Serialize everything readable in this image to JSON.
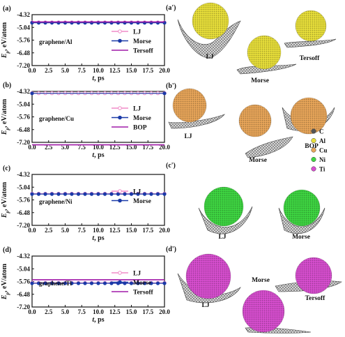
{
  "chart_data": [
    {
      "type": "line",
      "panel_label": "(a)",
      "system": "graphene/Al",
      "xlabel": "t, ps",
      "ylabel": "Ep, eV/atom",
      "xlim": [
        0,
        20
      ],
      "ylim": [
        -7.2,
        -4.32
      ],
      "yticks": [
        "-4.32",
        "-5.04",
        "-5.76",
        "-6.48",
        "-7.20"
      ],
      "xticks": [
        "0.0",
        "2.5",
        "5.0",
        "7.5",
        "10.0",
        "12.5",
        "15.0",
        "17.5",
        "20.0"
      ],
      "legend_position": "right",
      "series": [
        {
          "name": "LJ",
          "color": "#f08cc8",
          "marker": "circle-open",
          "x": [
            0,
            1,
            2,
            3,
            4,
            5,
            6,
            7,
            8,
            9,
            10,
            11,
            12,
            13,
            14,
            15,
            16,
            17,
            18,
            19,
            20
          ],
          "values": [
            -4.76,
            -4.76,
            -4.76,
            -4.76,
            -4.76,
            -4.76,
            -4.76,
            -4.76,
            -4.76,
            -4.76,
            -4.76,
            -4.76,
            -4.76,
            -4.76,
            -4.76,
            -4.76,
            -4.76,
            -4.76,
            -4.76,
            -4.76,
            -4.76
          ]
        },
        {
          "name": "Morse",
          "color": "#1a3aa8",
          "marker": "circle-filled",
          "x": [
            0,
            1,
            2,
            3,
            4,
            5,
            6,
            7,
            8,
            9,
            10,
            11,
            12,
            13,
            14,
            15,
            16,
            17,
            18,
            19,
            20
          ],
          "values": [
            -4.78,
            -4.78,
            -4.78,
            -4.78,
            -4.78,
            -4.78,
            -4.78,
            -4.78,
            -4.78,
            -4.78,
            -4.78,
            -4.78,
            -4.78,
            -4.78,
            -4.78,
            -4.78,
            -4.78,
            -4.78,
            -4.78,
            -4.78,
            -4.78
          ]
        },
        {
          "name": "Tersoff",
          "color": "#a01aa8",
          "marker": "none",
          "x": [
            0,
            20
          ],
          "values": [
            -4.73,
            -4.73
          ]
        }
      ]
    },
    {
      "type": "line",
      "panel_label": "(b)",
      "system": "graphene/Cu",
      "xlabel": "t, ps",
      "ylabel": "Ep, eV/atom",
      "xlim": [
        0,
        20
      ],
      "ylim": [
        -7.2,
        -4.32
      ],
      "yticks": [
        "-4.32",
        "-5.04",
        "-5.76",
        "-6.48",
        "-7.20"
      ],
      "xticks": [
        "0.0",
        "2.5",
        "5.0",
        "7.5",
        "10.0",
        "12.5",
        "15.0",
        "17.5",
        "20.0"
      ],
      "legend_position": "right",
      "series": [
        {
          "name": "LJ",
          "color": "#f08cc8",
          "marker": "circle-open",
          "x": [
            0,
            1,
            2,
            3,
            4,
            5,
            6,
            7,
            8,
            9,
            10,
            11,
            12,
            13,
            14,
            15,
            16,
            17,
            18,
            19,
            20
          ],
          "values": [
            -4.42,
            -4.42,
            -4.42,
            -4.42,
            -4.42,
            -4.42,
            -4.42,
            -4.42,
            -4.42,
            -4.42,
            -4.42,
            -4.42,
            -4.42,
            -4.42,
            -4.42,
            -4.42,
            -4.42,
            -4.42,
            -4.42,
            -4.42,
            -4.42
          ]
        },
        {
          "name": "Morse",
          "color": "#1a3aa8",
          "marker": "circle-filled",
          "x": [
            0,
            20
          ],
          "values": [
            -4.43,
            -4.43
          ]
        },
        {
          "name": "BOP",
          "color": "#a01aa8",
          "marker": "none",
          "x": [
            0,
            20
          ],
          "values": [
            -7.34,
            -7.34
          ]
        }
      ]
    },
    {
      "type": "line",
      "panel_label": "(c)",
      "system": "graphene/Ni",
      "xlabel": "t, ps",
      "ylabel": "Ep, eV/atom",
      "xlim": [
        0,
        20
      ],
      "ylim": [
        -7.2,
        -4.32
      ],
      "yticks": [
        "-4.32",
        "-5.04",
        "-5.76",
        "-6.48",
        "-7.20"
      ],
      "xticks": [
        "0.0",
        "2.5",
        "5.0",
        "7.5",
        "10.0",
        "12.5",
        "15.0",
        "17.5",
        "20.0"
      ],
      "legend_position": "right",
      "series": [
        {
          "name": "LJ",
          "color": "#f08cc8",
          "marker": "circle-open",
          "x": [
            0,
            1,
            2,
            3,
            4,
            5,
            6,
            7,
            8,
            9,
            10,
            11,
            12,
            13,
            14,
            15,
            16,
            17,
            18,
            19,
            20
          ],
          "values": [
            -5.41,
            -5.41,
            -5.41,
            -5.41,
            -5.41,
            -5.41,
            -5.41,
            -5.41,
            -5.41,
            -5.41,
            -5.41,
            -5.41,
            -5.41,
            -5.41,
            -5.41,
            -5.41,
            -5.41,
            -5.41,
            -5.41,
            -5.41,
            -5.41
          ]
        },
        {
          "name": "Morse",
          "color": "#1a3aa8",
          "marker": "circle-filled",
          "x": [
            0,
            1,
            2,
            3,
            4,
            5,
            6,
            7,
            8,
            9,
            10,
            11,
            12,
            13,
            14,
            15,
            16,
            17,
            18,
            19,
            20
          ],
          "values": [
            -5.43,
            -5.43,
            -5.43,
            -5.43,
            -5.43,
            -5.43,
            -5.43,
            -5.43,
            -5.43,
            -5.43,
            -5.43,
            -5.43,
            -5.43,
            -5.43,
            -5.43,
            -5.43,
            -5.43,
            -5.43,
            -5.43,
            -5.43,
            -5.43
          ]
        }
      ]
    },
    {
      "type": "line",
      "panel_label": "(d)",
      "system": "graphene/Ti",
      "xlabel": "t, ps",
      "ylabel": "Ep, eV/atom",
      "xlim": [
        0,
        20
      ],
      "ylim": [
        -7.2,
        -4.32
      ],
      "yticks": [
        "-4.32",
        "-5.04",
        "-5.76",
        "-6.48",
        "-7.20"
      ],
      "xticks": [
        "0.0",
        "2.5",
        "5.0",
        "7.5",
        "10.0",
        "12.5",
        "15.0",
        "17.5",
        "20.0"
      ],
      "legend_position": "right",
      "series": [
        {
          "name": "LJ",
          "color": "#f08cc8",
          "marker": "circle-open",
          "x": [
            0,
            1,
            2,
            3,
            4,
            5,
            6,
            7,
            8,
            9,
            10,
            11,
            12,
            13,
            14,
            15,
            16,
            17,
            18,
            19,
            20
          ],
          "values": [
            -5.84,
            -5.84,
            -5.84,
            -5.84,
            -5.84,
            -5.84,
            -5.84,
            -5.84,
            -5.84,
            -5.84,
            -5.84,
            -5.84,
            -5.84,
            -5.84,
            -5.84,
            -5.84,
            -5.84,
            -5.84,
            -5.84,
            -5.84,
            -5.84
          ]
        },
        {
          "name": "Morse",
          "color": "#1a3aa8",
          "marker": "circle-filled",
          "x": [
            0,
            1,
            2,
            3,
            4,
            5,
            6,
            7,
            8,
            9,
            10,
            11,
            12,
            13,
            14,
            15,
            16,
            17,
            18,
            19,
            20
          ],
          "values": [
            -5.86,
            -5.86,
            -5.86,
            -5.86,
            -5.86,
            -5.86,
            -5.86,
            -5.86,
            -5.86,
            -5.86,
            -5.86,
            -5.86,
            -5.86,
            -5.86,
            -5.86,
            -5.86,
            -5.86,
            -5.86,
            -5.86,
            -5.86,
            -5.86
          ]
        },
        {
          "name": "Tersoff",
          "color": "#a01aa8",
          "marker": "none",
          "x": [
            0,
            20
          ],
          "values": [
            -5.66,
            -5.66
          ]
        }
      ]
    }
  ],
  "illustrations": [
    {
      "label": "(a')",
      "captions": [
        "LJ",
        "Morse",
        "Tersoff"
      ],
      "particle_color": "#e8df3a"
    },
    {
      "label": "(b')",
      "captions": [
        "LJ",
        "Morse",
        "BOP"
      ],
      "particle_color": "#e8a65a"
    },
    {
      "label": "(c')",
      "captions": [
        "LJ",
        "Morse"
      ],
      "particle_color": "#3fd642"
    },
    {
      "label": "(d')",
      "captions": [
        "LJ",
        "Morse",
        "Tersoff"
      ],
      "particle_color": "#d84fd0"
    }
  ],
  "atom_key": [
    {
      "symbol": "C",
      "color": "#555555"
    },
    {
      "symbol": "Al",
      "color": "#e8df3a"
    },
    {
      "symbol": "Cu",
      "color": "#e8a65a"
    },
    {
      "symbol": "Ni",
      "color": "#3fd642"
    },
    {
      "symbol": "Ti",
      "color": "#d84fd0"
    }
  ]
}
